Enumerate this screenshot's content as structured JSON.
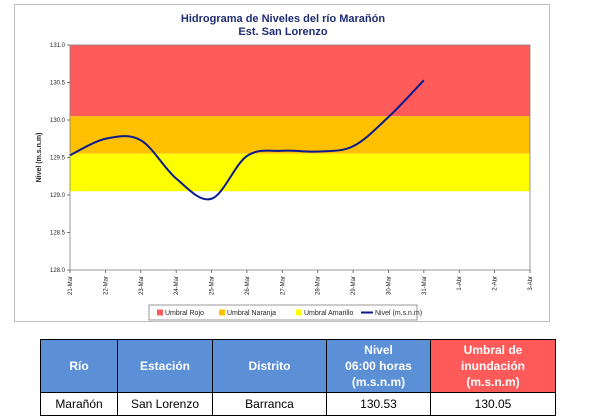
{
  "colors": {
    "rojo": "#ff5b5b",
    "naranja": "#ffc000",
    "amarillo": "#ffff00",
    "nivel_line": "#0a1a8f",
    "table_header_blue": "#5b8fd6",
    "table_header_red": "#ff5a5a"
  },
  "chart_data": {
    "type": "line",
    "title": "Hidrograma de Niveles del río Marañón",
    "subtitle": "Est. San Lorenzo",
    "xlabel": "",
    "ylabel": "Nivel (m.s.n.m)",
    "ylim": [
      128.0,
      131.0
    ],
    "yticks": [
      "128.0",
      "128.5",
      "129.0",
      "129.5",
      "130.0",
      "130.5",
      "131.0"
    ],
    "categories": [
      "21-Mar",
      "22-Mar",
      "23-Mar",
      "24-Mar",
      "25-Mar",
      "26-Mar",
      "27-Mar",
      "28-Mar",
      "29-Mar",
      "30-Mar",
      "31-Mar",
      "1-Abr",
      "2-Abr",
      "3-Abr"
    ],
    "bands": [
      {
        "name": "Umbral Rojo",
        "from": 130.05,
        "to": 131.0
      },
      {
        "name": "Umbral Naranja",
        "from": 129.55,
        "to": 130.05
      },
      {
        "name": "Umbral Amarillo",
        "from": 129.05,
        "to": 129.55
      }
    ],
    "series": [
      {
        "name": "Nivel (m.s.n.m)",
        "values": [
          129.53,
          129.75,
          129.73,
          129.22,
          128.95,
          129.52,
          129.59,
          129.58,
          129.65,
          130.04,
          130.53,
          null,
          null,
          null
        ]
      }
    ],
    "legend": [
      "Umbral Rojo",
      "Umbral Naranja",
      "Umbral Amarillo",
      "Nivel (m.s.n.m)"
    ],
    "legend_position": "bottom",
    "grid": false
  },
  "table": {
    "headers": [
      "Río",
      "Estación",
      "Distrito",
      "Nivel\n06:00 horas\n(m.s.n.m)",
      "Umbral de\ninundación\n(m.s.n.m)"
    ],
    "row": [
      "Marañón",
      "San Lorenzo",
      "Barranca",
      "130.53",
      "130.05"
    ]
  }
}
